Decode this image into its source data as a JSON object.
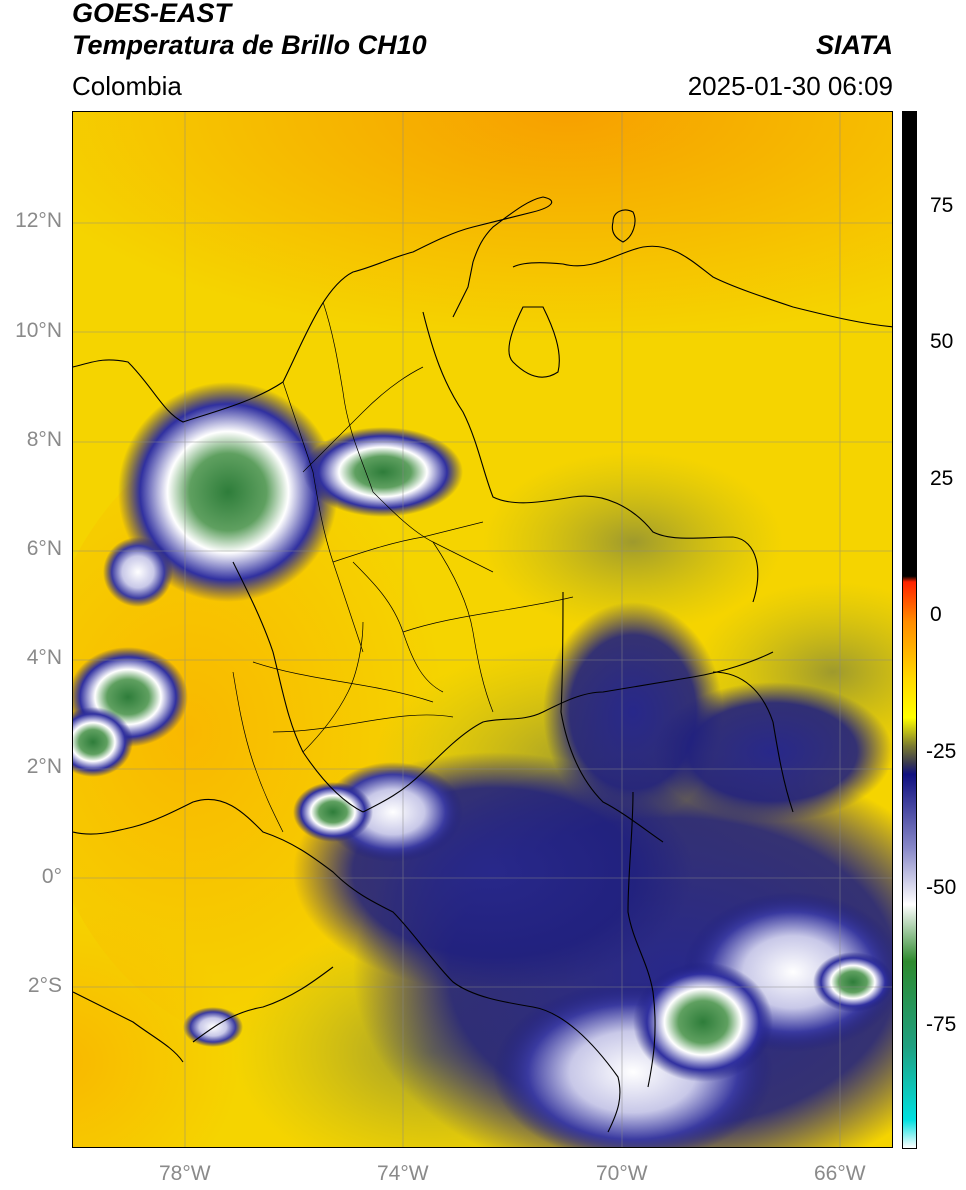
{
  "header": {
    "satellite": "GOES-EAST",
    "product": "Temperatura de Brillo CH10",
    "region": "Colombia",
    "source": "SIATA",
    "datetime": "2025-01-30 06:09"
  },
  "axes": {
    "lat_labels": [
      "12°N",
      "10°N",
      "8°N",
      "6°N",
      "4°N",
      "2°N",
      "0°",
      "2°S"
    ],
    "lon_labels": [
      "78°W",
      "74°W",
      "70°W",
      "66°W"
    ]
  },
  "colorbar": {
    "tick_labels": [
      "75",
      "50",
      "25",
      "0",
      "-25",
      "-50",
      "-75"
    ],
    "stops": [
      {
        "value": 90,
        "color": "#000000"
      },
      {
        "value": 8,
        "color": "#000000"
      },
      {
        "value": 7,
        "color": "#ff2200"
      },
      {
        "value": 0,
        "color": "#ff8c00"
      },
      {
        "value": -10,
        "color": "#ffd800"
      },
      {
        "value": -17,
        "color": "#ffff00"
      },
      {
        "value": -22,
        "color": "#7a7a30"
      },
      {
        "value": -25,
        "color": "#3a3a50"
      },
      {
        "value": -27,
        "color": "#101080"
      },
      {
        "value": -40,
        "color": "#8888c8"
      },
      {
        "value": -50,
        "color": "#ffffff"
      },
      {
        "value": -60,
        "color": "#2e8a2e"
      },
      {
        "value": -75,
        "color": "#1fa080"
      },
      {
        "value": -88,
        "color": "#00e0e0"
      },
      {
        "value": -93,
        "color": "#ffffff"
      }
    ]
  },
  "colors": {
    "background_yellow": "#f5d800",
    "warm_orange": "#f7a000",
    "cloud_navy": "#1a1a7a",
    "cloud_white": "#f0f0f8",
    "cloud_green": "#2e7d3a",
    "olive": "#9a9a30"
  }
}
